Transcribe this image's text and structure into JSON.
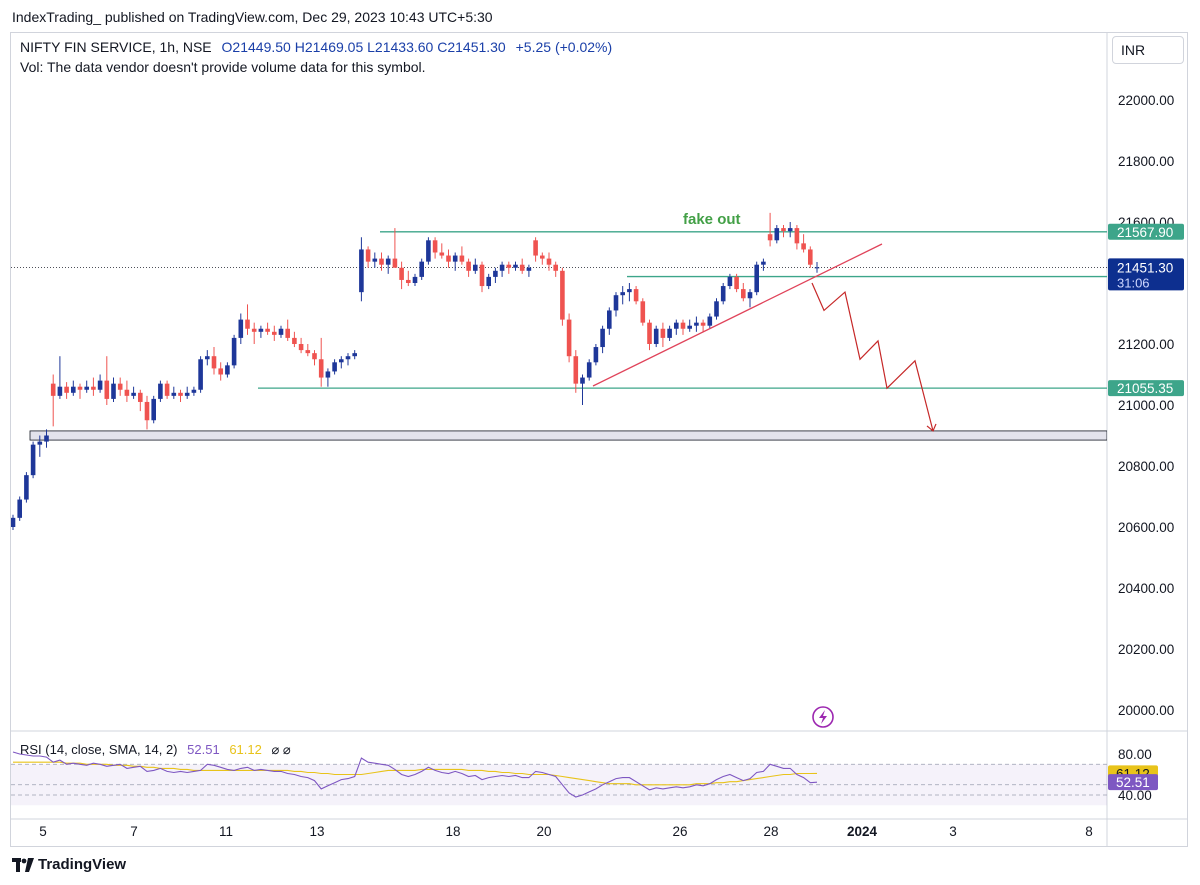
{
  "header": {
    "published": "IndexTrading_ published on TradingView.com, Dec 29, 2023 10:43 UTC+5:30"
  },
  "legend": {
    "symbol": "NIFTY FIN SERVICE, 1h, NSE",
    "open": "O21449.50",
    "high": "H21469.05",
    "low": "L21433.60",
    "close": "C21451.30",
    "change": "+5.25 (+0.02%)",
    "volume_note": "Vol: The data vendor doesn't provide volume data for this symbol."
  },
  "currency": "INR",
  "colors": {
    "up": "#1e3799",
    "down": "#ef5350",
    "level": "#3da58a",
    "trend": "#e0435a",
    "zone_fill": "#e3e3ec",
    "current_tag": "#0d2f8f",
    "rsi": "#7e57c2",
    "rsi_sma": "#e8c31a"
  },
  "rsi_legend": {
    "label": "RSI (14, close, SMA, 14, 2)",
    "rsi_value": "52.51",
    "sma_value": "61.12",
    "icons": "⌀ ⌀"
  },
  "footer": {
    "brand": "TradingView"
  },
  "chart_data": {
    "type": "candlestick",
    "symbol": "NIFTY FIN SERVICE",
    "timeframe": "1h",
    "exchange": "NSE",
    "y_ticks": [
      "22000.00",
      "21800.00",
      "21600.00",
      "21200.00",
      "21000.00",
      "20800.00",
      "20600.00",
      "20400.00",
      "20200.00",
      "20000.00"
    ],
    "y_tick_values": [
      22000,
      21800,
      21600,
      21200,
      21000,
      20800,
      20600,
      20400,
      20200,
      20000
    ],
    "ylim": [
      19970,
      22190
    ],
    "x_ticks": [
      "5",
      "7",
      "11",
      "13",
      "18",
      "20",
      "26",
      "28",
      "2024",
      "3",
      "8"
    ],
    "levels": [
      {
        "label": "21567.90",
        "value": 21567.9
      },
      {
        "label": "21421.05",
        "value": 21421.05
      },
      {
        "label": "21055.35",
        "value": 21055.35
      }
    ],
    "current_price": {
      "label": "21451.30",
      "countdown": "31:06",
      "value": 21451.3
    },
    "support_zone": [
      20885,
      20915
    ],
    "annotation": "fake out",
    "projection": [
      21400,
      21310,
      21370,
      21150,
      21210,
      21055,
      21145,
      20915
    ],
    "candles": [
      [
        20600,
        20640,
        20590,
        20630
      ],
      [
        20630,
        20700,
        20620,
        20690
      ],
      [
        20690,
        20780,
        20680,
        20770
      ],
      [
        20770,
        20880,
        20760,
        20870
      ],
      [
        20870,
        20900,
        20830,
        20880
      ],
      [
        20880,
        20920,
        20860,
        20900
      ],
      [
        21070,
        21100,
        20930,
        21030
      ],
      [
        21030,
        21160,
        21020,
        21060
      ],
      [
        21060,
        21075,
        21020,
        21040
      ],
      [
        21040,
        21080,
        21030,
        21060
      ],
      [
        21060,
        21070,
        21020,
        21050
      ],
      [
        21050,
        21080,
        21040,
        21060
      ],
      [
        21060,
        21090,
        21030,
        21050
      ],
      [
        21050,
        21100,
        21040,
        21080
      ],
      [
        21080,
        21160,
        21000,
        21020
      ],
      [
        21020,
        21090,
        21010,
        21070
      ],
      [
        21070,
        21090,
        21030,
        21050
      ],
      [
        21050,
        21080,
        21010,
        21030
      ],
      [
        21030,
        21060,
        21020,
        21040
      ],
      [
        21040,
        21050,
        20980,
        21010
      ],
      [
        21010,
        21030,
        20920,
        20950
      ],
      [
        20950,
        21030,
        20940,
        21020
      ],
      [
        21020,
        21080,
        21010,
        21070
      ],
      [
        21070,
        21080,
        21020,
        21030
      ],
      [
        21030,
        21060,
        21020,
        21040
      ],
      [
        21040,
        21050,
        21010,
        21030
      ],
      [
        21030,
        21060,
        21020,
        21040
      ],
      [
        21040,
        21060,
        21030,
        21050
      ],
      [
        21050,
        21160,
        21040,
        21150
      ],
      [
        21150,
        21180,
        21130,
        21160
      ],
      [
        21160,
        21190,
        21100,
        21120
      ],
      [
        21120,
        21140,
        21080,
        21100
      ],
      [
        21100,
        21140,
        21090,
        21130
      ],
      [
        21130,
        21230,
        21120,
        21220
      ],
      [
        21220,
        21300,
        21200,
        21280
      ],
      [
        21280,
        21330,
        21230,
        21250
      ],
      [
        21250,
        21270,
        21200,
        21240
      ],
      [
        21240,
        21260,
        21220,
        21250
      ],
      [
        21250,
        21270,
        21230,
        21240
      ],
      [
        21240,
        21260,
        21210,
        21230
      ],
      [
        21230,
        21260,
        21220,
        21250
      ],
      [
        21250,
        21280,
        21210,
        21220
      ],
      [
        21220,
        21240,
        21190,
        21200
      ],
      [
        21200,
        21220,
        21170,
        21180
      ],
      [
        21180,
        21200,
        21160,
        21170
      ],
      [
        21170,
        21180,
        21130,
        21150
      ],
      [
        21150,
        21220,
        21060,
        21090
      ],
      [
        21090,
        21120,
        21060,
        21110
      ],
      [
        21110,
        21150,
        21100,
        21140
      ],
      [
        21140,
        21160,
        21120,
        21150
      ],
      [
        21150,
        21170,
        21130,
        21160
      ],
      [
        21160,
        21180,
        21150,
        21170
      ],
      [
        21370,
        21550,
        21340,
        21510
      ],
      [
        21510,
        21520,
        21450,
        21470
      ],
      [
        21470,
        21500,
        21450,
        21480
      ],
      [
        21480,
        21500,
        21440,
        21460
      ],
      [
        21460,
        21490,
        21430,
        21480
      ],
      [
        21480,
        21580,
        21460,
        21450
      ],
      [
        21450,
        21470,
        21380,
        21410
      ],
      [
        21410,
        21440,
        21390,
        21400
      ],
      [
        21400,
        21430,
        21390,
        21420
      ],
      [
        21420,
        21480,
        21410,
        21470
      ],
      [
        21470,
        21550,
        21460,
        21540
      ],
      [
        21540,
        21550,
        21480,
        21500
      ],
      [
        21500,
        21530,
        21480,
        21490
      ],
      [
        21490,
        21510,
        21450,
        21470
      ],
      [
        21470,
        21500,
        21440,
        21490
      ],
      [
        21490,
        21520,
        21460,
        21470
      ],
      [
        21470,
        21480,
        21420,
        21440
      ],
      [
        21440,
        21480,
        21430,
        21460
      ],
      [
        21460,
        21470,
        21370,
        21390
      ],
      [
        21390,
        21430,
        21380,
        21420
      ],
      [
        21420,
        21450,
        21400,
        21440
      ],
      [
        21440,
        21470,
        21420,
        21460
      ],
      [
        21460,
        21470,
        21430,
        21450
      ],
      [
        21450,
        21470,
        21440,
        21460
      ],
      [
        21460,
        21480,
        21430,
        21440
      ],
      [
        21440,
        21460,
        21420,
        21450
      ],
      [
        21540,
        21550,
        21470,
        21490
      ],
      [
        21490,
        21500,
        21460,
        21480
      ],
      [
        21480,
        21500,
        21440,
        21460
      ],
      [
        21460,
        21470,
        21420,
        21440
      ],
      [
        21440,
        21450,
        21260,
        21280
      ],
      [
        21280,
        21300,
        21140,
        21160
      ],
      [
        21160,
        21180,
        21040,
        21070
      ],
      [
        21070,
        21100,
        21000,
        21090
      ],
      [
        21090,
        21150,
        21080,
        21140
      ],
      [
        21140,
        21200,
        21130,
        21190
      ],
      [
        21190,
        21260,
        21170,
        21250
      ],
      [
        21250,
        21320,
        21230,
        21310
      ],
      [
        21310,
        21370,
        21290,
        21360
      ],
      [
        21360,
        21390,
        21330,
        21370
      ],
      [
        21370,
        21400,
        21340,
        21380
      ],
      [
        21380,
        21390,
        21330,
        21340
      ],
      [
        21340,
        21350,
        21260,
        21270
      ],
      [
        21270,
        21280,
        21180,
        21200
      ],
      [
        21200,
        21260,
        21190,
        21250
      ],
      [
        21250,
        21270,
        21190,
        21220
      ],
      [
        21220,
        21260,
        21210,
        21250
      ],
      [
        21250,
        21280,
        21230,
        21270
      ],
      [
        21270,
        21280,
        21230,
        21250
      ],
      [
        21250,
        21280,
        21240,
        21260
      ],
      [
        21260,
        21290,
        21240,
        21270
      ],
      [
        21270,
        21280,
        21240,
        21260
      ],
      [
        21260,
        21300,
        21250,
        21290
      ],
      [
        21290,
        21350,
        21280,
        21340
      ],
      [
        21340,
        21400,
        21330,
        21390
      ],
      [
        21390,
        21430,
        21380,
        21420
      ],
      [
        21420,
        21430,
        21370,
        21380
      ],
      [
        21380,
        21400,
        21340,
        21350
      ],
      [
        21350,
        21380,
        21320,
        21370
      ],
      [
        21370,
        21470,
        21360,
        21460
      ],
      [
        21460,
        21480,
        21440,
        21470
      ],
      [
        21560,
        21630,
        21520,
        21540
      ],
      [
        21540,
        21590,
        21530,
        21580
      ],
      [
        21580,
        21590,
        21550,
        21570
      ],
      [
        21570,
        21600,
        21550,
        21580
      ],
      [
        21580,
        21590,
        21510,
        21530
      ],
      [
        21530,
        21560,
        21500,
        21510
      ],
      [
        21510,
        21520,
        21450,
        21460
      ],
      [
        21449.5,
        21469.05,
        21433.6,
        21451.3
      ]
    ],
    "rsi": {
      "label": "RSI (14, close, SMA, 14, 2)",
      "ylim": [
        35,
        85
      ],
      "tick_labels": [
        "80.00",
        "40.00"
      ],
      "tick_values": [
        80,
        40
      ],
      "band": [
        30,
        70
      ],
      "rsi_value": 52.51,
      "sma_value": 61.12,
      "rsi_series": [
        82,
        80,
        79,
        78,
        78,
        77,
        72,
        74,
        70,
        71,
        70,
        69,
        71,
        70,
        68,
        69,
        70,
        66,
        67,
        68,
        63,
        64,
        66,
        63,
        62,
        63,
        62,
        63,
        64,
        70,
        69,
        67,
        65,
        64,
        66,
        67,
        64,
        65,
        64,
        63,
        63,
        61,
        60,
        58,
        57,
        54,
        46,
        49,
        52,
        55,
        56,
        58,
        76,
        72,
        71,
        70,
        69,
        65,
        60,
        58,
        60,
        63,
        67,
        64,
        62,
        61,
        63,
        61,
        58,
        59,
        55,
        57,
        58,
        59,
        58,
        59,
        57,
        57,
        63,
        62,
        60,
        58,
        50,
        42,
        38,
        40,
        43,
        46,
        50,
        53,
        56,
        57,
        57,
        53,
        49,
        45,
        47,
        46,
        47,
        48,
        47,
        48,
        50,
        49,
        51,
        55,
        58,
        60,
        57,
        54,
        56,
        62,
        63,
        70,
        68,
        66,
        66,
        60,
        57,
        52,
        52.51
      ],
      "sma_series": [
        72,
        72,
        72,
        72,
        72,
        72,
        72,
        72,
        71,
        71,
        71,
        70,
        70,
        70,
        70,
        69,
        69,
        69,
        68,
        68,
        67,
        67,
        66,
        66,
        66,
        65,
        65,
        64,
        64,
        64,
        64,
        64,
        64,
        64,
        64,
        64,
        64,
        64,
        64,
        64,
        64,
        64,
        63,
        63,
        62,
        62,
        61,
        61,
        60,
        60,
        60,
        60,
        60,
        61,
        62,
        63,
        64,
        64,
        64,
        64,
        64,
        65,
        65,
        65,
        65,
        65,
        65,
        65,
        64,
        64,
        64,
        63,
        63,
        62,
        62,
        61,
        61,
        60,
        60,
        60,
        60,
        59,
        58,
        57,
        56,
        55,
        54,
        53,
        52,
        51,
        51,
        51,
        51,
        50,
        50,
        50,
        50,
        50,
        50,
        50,
        50,
        50,
        51,
        51,
        51,
        52,
        52,
        53,
        53,
        54,
        55,
        56,
        57,
        58,
        59,
        60,
        60,
        61,
        61,
        61,
        61.12
      ]
    }
  }
}
